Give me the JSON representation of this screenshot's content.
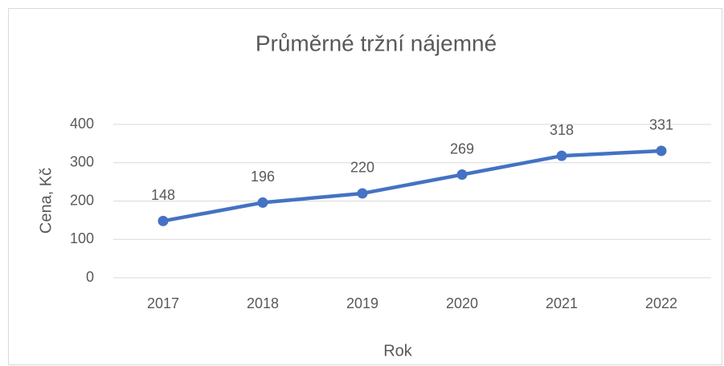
{
  "chart_data": {
    "type": "line",
    "title": "Průměrné tržní nájemné",
    "x_label": "Rok",
    "y_label": "Cena, Kč",
    "categories": [
      "2017",
      "2018",
      "2019",
      "2020",
      "2021",
      "2022"
    ],
    "values": [
      148,
      196,
      220,
      269,
      318,
      331
    ],
    "color": "#4472c4",
    "ylim": [
      0,
      400
    ],
    "yticks": [
      0,
      100,
      200,
      300,
      400
    ],
    "grid": true,
    "data_labels": true
  }
}
